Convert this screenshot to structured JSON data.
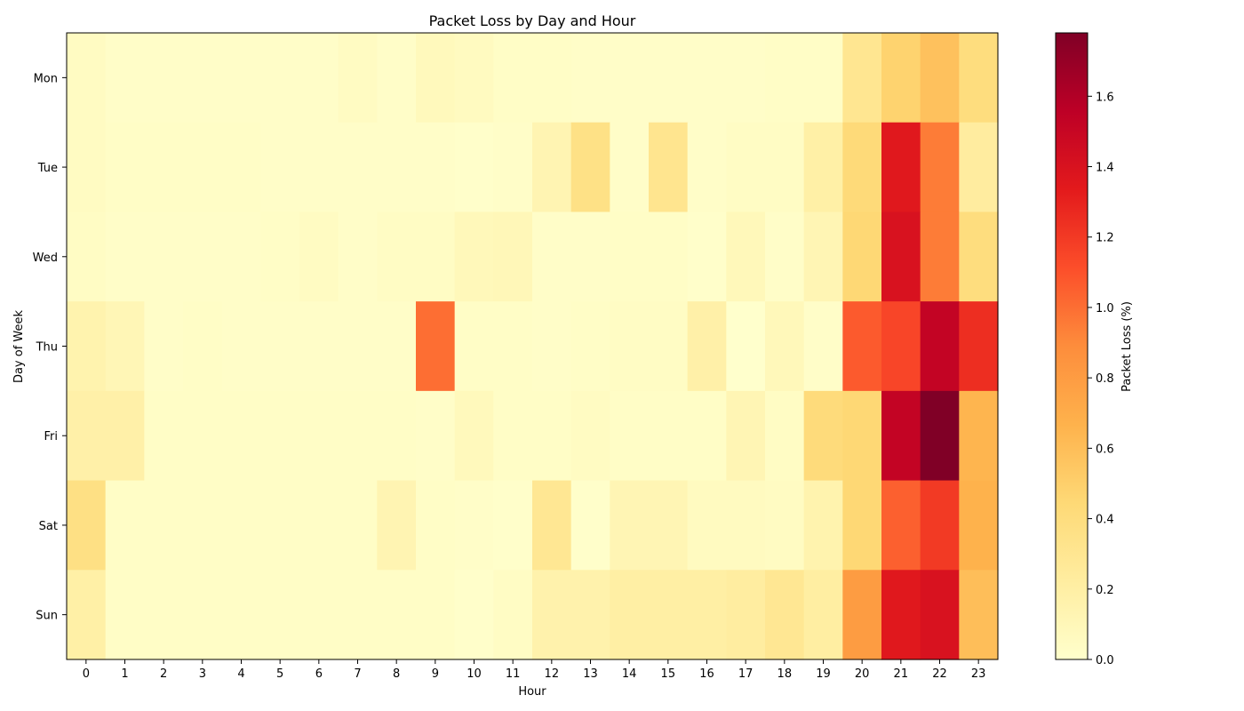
{
  "chart_data": {
    "type": "heatmap",
    "title": "Packet Loss by Day and Hour",
    "xlabel": "Hour",
    "ylabel": "Day of Week",
    "x_categories": [
      "0",
      "1",
      "2",
      "3",
      "4",
      "5",
      "6",
      "7",
      "8",
      "9",
      "10",
      "11",
      "12",
      "13",
      "14",
      "15",
      "16",
      "17",
      "18",
      "19",
      "20",
      "21",
      "22",
      "23"
    ],
    "y_categories": [
      "Mon",
      "Tue",
      "Wed",
      "Thu",
      "Fri",
      "Sat",
      "Sun"
    ],
    "values": [
      [
        0.05,
        0.02,
        0.02,
        0.02,
        0.02,
        0.02,
        0.02,
        0.05,
        0.02,
        0.08,
        0.06,
        0.03,
        0.03,
        0.02,
        0.02,
        0.02,
        0.02,
        0.02,
        0.03,
        0.03,
        0.3,
        0.48,
        0.58,
        0.4
      ],
      [
        0.05,
        0.03,
        0.03,
        0.03,
        0.03,
        0.02,
        0.02,
        0.02,
        0.02,
        0.02,
        0.01,
        0.02,
        0.13,
        0.36,
        0.02,
        0.31,
        0.02,
        0.04,
        0.04,
        0.19,
        0.43,
        1.35,
        0.95,
        0.23
      ],
      [
        0.04,
        0.02,
        0.02,
        0.02,
        0.02,
        0.03,
        0.05,
        0.02,
        0.04,
        0.04,
        0.09,
        0.1,
        0.02,
        0.02,
        0.03,
        0.03,
        0.01,
        0.09,
        0.02,
        0.12,
        0.45,
        1.4,
        0.95,
        0.4
      ],
      [
        0.15,
        0.11,
        0.02,
        0.03,
        0.02,
        0.02,
        0.02,
        0.02,
        0.02,
        1.0,
        0.03,
        0.03,
        0.02,
        0.03,
        0.04,
        0.04,
        0.18,
        0.0,
        0.09,
        0.02,
        1.07,
        1.15,
        1.52,
        1.25
      ],
      [
        0.18,
        0.18,
        0.03,
        0.03,
        0.03,
        0.03,
        0.03,
        0.03,
        0.03,
        0.02,
        0.08,
        0.03,
        0.03,
        0.05,
        0.03,
        0.03,
        0.03,
        0.12,
        0.04,
        0.42,
        0.45,
        1.52,
        1.78,
        0.65
      ],
      [
        0.37,
        0.03,
        0.03,
        0.03,
        0.03,
        0.03,
        0.03,
        0.03,
        0.13,
        0.03,
        0.02,
        0.01,
        0.29,
        0.01,
        0.12,
        0.12,
        0.06,
        0.06,
        0.05,
        0.15,
        0.45,
        1.05,
        1.2,
        0.67
      ],
      [
        0.19,
        0.03,
        0.03,
        0.03,
        0.03,
        0.03,
        0.03,
        0.03,
        0.03,
        0.03,
        0.01,
        0.04,
        0.16,
        0.16,
        0.2,
        0.2,
        0.2,
        0.22,
        0.29,
        0.21,
        0.8,
        1.35,
        1.4,
        0.6
      ]
    ],
    "colormap": "YlOrRd",
    "vmin": 0.0,
    "vmax": 1.78,
    "colorbar": {
      "label": "Packet Loss (%)",
      "ticks": [
        "0.0",
        "0.2",
        "0.4",
        "0.6",
        "0.8",
        "1.0",
        "1.2",
        "1.4",
        "1.6"
      ],
      "tick_values": [
        0.0,
        0.2,
        0.4,
        0.6,
        0.8,
        1.0,
        1.2,
        1.4,
        1.6
      ]
    }
  }
}
